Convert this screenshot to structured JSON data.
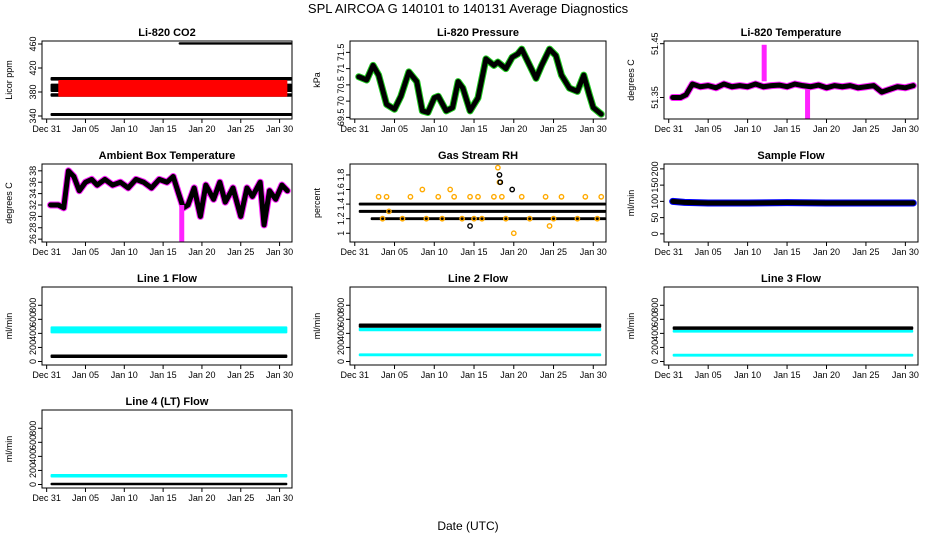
{
  "page": {
    "main_title": "SPL   AIRCOA G   140101 to 140131   Average Diagnostics",
    "xlabel": "Date (UTC)"
  },
  "colors": {
    "black": "#000000",
    "red": "#ff0000",
    "green": "#22cc22",
    "magenta": "#ff22ff",
    "orange": "#ffaa00",
    "blue": "#0000ff",
    "cyan": "#00ffff",
    "white": "#ffffff"
  },
  "x_ticks": [
    "Dec 31",
    "Jan 05",
    "Jan 10",
    "Jan 15",
    "Jan 20",
    "Jan 25",
    "Jan 30"
  ],
  "x_tick_days": [
    0,
    5,
    10,
    15,
    20,
    25,
    30
  ],
  "chart_data": [
    {
      "id": "co2",
      "type": "scatter",
      "title": "Li-820 CO2",
      "ylabel": "Licor ppm",
      "ylim": [
        335,
        465
      ],
      "yticks": [
        340,
        380,
        420,
        460
      ],
      "xlim": [
        -0.6,
        31.6
      ],
      "series": [
        {
          "name": "CO2 band 460",
          "color": "black",
          "shape": "band",
          "x": [
            17,
            31.6
          ],
          "y": [
            459,
            463
          ]
        },
        {
          "name": "CO2 band 402",
          "color": "black",
          "shape": "band",
          "x": [
            0.5,
            31.6
          ],
          "y": [
            399,
            405
          ]
        },
        {
          "name": "CO2 band 385",
          "color": "black",
          "shape": "band",
          "x": [
            0.5,
            31.6
          ],
          "y": [
            380,
            394
          ]
        },
        {
          "name": "CO2 band 375",
          "color": "black",
          "shape": "band",
          "x": [
            0.5,
            31.6
          ],
          "y": [
            372,
            378
          ]
        },
        {
          "name": "CO2 red",
          "color": "red",
          "shape": "band",
          "x": [
            1.5,
            31
          ],
          "y": [
            372,
            400
          ]
        },
        {
          "name": "CO2 band 342",
          "color": "black",
          "shape": "band",
          "x": [
            0.5,
            31.6
          ],
          "y": [
            340,
            345
          ]
        }
      ]
    },
    {
      "id": "pressure",
      "type": "line",
      "title": "Li-820 Pressure",
      "ylabel": "kPa",
      "ylim": [
        69.45,
        71.85
      ],
      "yticks": [
        69.5,
        70.0,
        70.5,
        71.0,
        71.5
      ],
      "xlim": [
        -0.6,
        31.6
      ],
      "series": [
        {
          "name": "Pressure",
          "color": "black",
          "halo": "green",
          "x": [
            0.5,
            1.5,
            2.3,
            3,
            4,
            5,
            5.8,
            6.8,
            7.8,
            8.5,
            9.2,
            10,
            10.5,
            11.5,
            12.3,
            13,
            13.6,
            14.5,
            15.5,
            16.5,
            17.5,
            18,
            19,
            19.8,
            20.5,
            21,
            21.8,
            22.8,
            23.5,
            24.5,
            25.3,
            26,
            27,
            28,
            28.8,
            29.5,
            30,
            31
          ],
          "y": [
            70.75,
            70.65,
            71.1,
            70.8,
            69.9,
            69.75,
            70.15,
            70.9,
            70.6,
            69.7,
            69.65,
            70.1,
            70.15,
            69.7,
            69.8,
            70.6,
            70.4,
            69.7,
            70.1,
            71.3,
            71.1,
            71.2,
            71.0,
            71.35,
            71.45,
            71.6,
            71.2,
            70.7,
            71.1,
            71.6,
            71.4,
            70.8,
            70.4,
            70.3,
            70.8,
            70.2,
            69.8,
            69.6
          ]
        }
      ]
    },
    {
      "id": "licor_temp",
      "type": "line",
      "title": "Li-820 Temperature",
      "ylabel": "degrees C",
      "ylim": [
        51.31,
        51.455
      ],
      "yticks": [
        51.35,
        51.45
      ],
      "xlim": [
        -0.6,
        31.6
      ],
      "series": [
        {
          "name": "Licor temp",
          "color": "black",
          "halo": "magenta",
          "x": [
            0.5,
            1.5,
            2.2,
            3,
            4,
            5,
            6,
            7,
            8,
            9,
            10,
            11,
            12,
            13,
            14,
            15,
            16,
            17,
            18,
            19,
            20,
            21,
            22,
            23,
            24,
            25,
            26,
            27,
            28,
            29,
            30,
            31
          ],
          "y": [
            51.35,
            51.35,
            51.355,
            51.375,
            51.37,
            51.372,
            51.368,
            51.375,
            51.37,
            51.372,
            51.37,
            51.375,
            51.37,
            51.372,
            51.373,
            51.37,
            51.375,
            51.372,
            51.37,
            51.373,
            51.368,
            51.372,
            51.37,
            51.372,
            51.368,
            51.37,
            51.372,
            51.36,
            51.365,
            51.37,
            51.368,
            51.372
          ]
        },
        {
          "name": "Temp spike up",
          "color": "magenta",
          "shape": "spike",
          "x": [
            12.1,
            12.1
          ],
          "y": [
            51.38,
            51.448
          ]
        },
        {
          "name": "Temp spike down",
          "color": "magenta",
          "shape": "spike",
          "x": [
            17.6,
            17.6
          ],
          "y": [
            51.31,
            51.365
          ]
        }
      ]
    },
    {
      "id": "ambient",
      "type": "line",
      "title": "Ambient Box Temperature",
      "ylabel": "degrees C",
      "ylim": [
        25.5,
        39.2
      ],
      "yticks": [
        26,
        28,
        30,
        32,
        34,
        36,
        38
      ],
      "xlim": [
        -0.6,
        31.6
      ],
      "series": [
        {
          "name": "Ambient",
          "color": "black",
          "halo": "magenta",
          "x": [
            0.5,
            1.5,
            2.2,
            2.8,
            3.5,
            4.2,
            5,
            5.8,
            6.5,
            7.5,
            8.5,
            9.5,
            10.5,
            11.5,
            12.5,
            13.5,
            14.5,
            15.5,
            16.3,
            17,
            17.6,
            18.2,
            19,
            19.8,
            20.5,
            21.5,
            22.3,
            23,
            24,
            25,
            25.8,
            26.5,
            27.5,
            28,
            28.7,
            29.5,
            30.3,
            31
          ],
          "y": [
            32.0,
            32.0,
            31.5,
            38.0,
            37.0,
            34.5,
            36.0,
            36.5,
            35.5,
            36.5,
            35.5,
            36.0,
            35.0,
            36.5,
            36.0,
            35.0,
            36.5,
            36.0,
            37.0,
            34.0,
            31.5,
            32.0,
            35.0,
            30.0,
            35.5,
            33.0,
            36.0,
            32.5,
            35.0,
            30.0,
            35.0,
            33.5,
            36.0,
            28.5,
            34.5,
            33.0,
            35.5,
            34.5
          ]
        },
        {
          "name": "Ambient spike",
          "color": "magenta",
          "shape": "spike",
          "x": [
            17.4,
            17.4
          ],
          "y": [
            25.5,
            32
          ]
        }
      ]
    },
    {
      "id": "rh",
      "type": "scatter",
      "title": "Gas Stream RH",
      "ylabel": "percent",
      "ylim": [
        0.88,
        1.95
      ],
      "yticks": [
        1.0,
        1.2,
        1.4,
        1.6,
        1.8
      ],
      "xlim": [
        -0.6,
        31.6
      ],
      "series": [
        {
          "name": "RH 1.4",
          "color": "black",
          "shape": "band",
          "x": [
            0.5,
            31.6
          ],
          "y": [
            1.38,
            1.42
          ]
        },
        {
          "name": "RH 1.3",
          "color": "black",
          "shape": "band",
          "x": [
            0.5,
            31.6
          ],
          "y": [
            1.28,
            1.32
          ]
        },
        {
          "name": "RH 1.2",
          "color": "black",
          "shape": "band",
          "x": [
            2,
            31.6
          ],
          "y": [
            1.18,
            1.22
          ]
        },
        {
          "name": "RH orange",
          "color": "orange",
          "shape": "points",
          "x": [
            3,
            3.5,
            4,
            4.3,
            6,
            7,
            8.5,
            9,
            10.5,
            11,
            12,
            12.5,
            13.5,
            14.5,
            15,
            15.5,
            16,
            17.5,
            18,
            18.2,
            18.5,
            19,
            20,
            21,
            22,
            24,
            24.5,
            25,
            26,
            28,
            29,
            30.5,
            31
          ],
          "y": [
            1.5,
            1.2,
            1.5,
            1.3,
            1.2,
            1.5,
            1.6,
            1.2,
            1.5,
            1.2,
            1.6,
            1.5,
            1.2,
            1.5,
            1.2,
            1.5,
            1.2,
            1.5,
            1.9,
            1.7,
            1.5,
            1.2,
            1.0,
            1.5,
            1.2,
            1.5,
            1.1,
            1.2,
            1.5,
            1.2,
            1.5,
            1.2,
            1.5
          ]
        },
        {
          "name": "RH black outliers",
          "color": "black",
          "shape": "points",
          "x": [
            14.5,
            18.3,
            18.2,
            19.8
          ],
          "y": [
            1.1,
            1.7,
            1.8,
            1.6
          ]
        }
      ]
    },
    {
      "id": "sample",
      "type": "line",
      "title": "Sample Flow",
      "ylabel": "ml/min",
      "ylim": [
        -25,
        215
      ],
      "yticks": [
        0,
        50,
        100,
        150,
        200
      ],
      "xlim": [
        -0.6,
        31.6
      ],
      "series": [
        {
          "name": "Sample flow",
          "color": "black",
          "halo": "blue",
          "x": [
            0.5,
            2,
            5,
            10,
            15,
            20,
            25,
            31
          ],
          "y": [
            100,
            97,
            95,
            95,
            96,
            95,
            95,
            95
          ]
        }
      ]
    },
    {
      "id": "line1",
      "type": "scatter",
      "title": "Line 1 Flow",
      "ylabel": "ml/min",
      "ylim": [
        -50,
        1060
      ],
      "yticks": [
        0,
        200,
        400,
        600,
        800
      ],
      "xlim": [
        -0.6,
        31.6
      ],
      "series": [
        {
          "name": "Line 1 cyan",
          "color": "cyan",
          "shape": "band",
          "x": [
            0.5,
            31
          ],
          "y": [
            400,
            500
          ]
        },
        {
          "name": "Line 1 black",
          "color": "black",
          "shape": "band",
          "x": [
            0.5,
            31
          ],
          "y": [
            50,
            100
          ]
        }
      ]
    },
    {
      "id": "line2",
      "type": "scatter",
      "title": "Line 2 Flow",
      "ylabel": "ml/min",
      "ylim": [
        -50,
        1060
      ],
      "yticks": [
        0,
        200,
        400,
        600,
        800
      ],
      "xlim": [
        -0.6,
        31.6
      ],
      "series": [
        {
          "name": "Line 2 cyan",
          "color": "cyan",
          "shape": "band",
          "x": [
            0.5,
            31
          ],
          "y": [
            430,
            480
          ]
        },
        {
          "name": "Line 2 black",
          "color": "black",
          "shape": "band",
          "x": [
            0.5,
            31
          ],
          "y": [
            480,
            540
          ]
        },
        {
          "name": "Line 2 cyan low",
          "color": "cyan",
          "shape": "band",
          "x": [
            0.5,
            31
          ],
          "y": [
            75,
            115
          ]
        }
      ]
    },
    {
      "id": "line3",
      "type": "scatter",
      "title": "Line 3 Flow",
      "ylabel": "ml/min",
      "ylim": [
        -50,
        1060
      ],
      "yticks": [
        0,
        200,
        400,
        600,
        800
      ],
      "xlim": [
        -0.6,
        31.6
      ],
      "series": [
        {
          "name": "Line 3 cyan",
          "color": "cyan",
          "shape": "band",
          "x": [
            0.5,
            31
          ],
          "y": [
            410,
            450
          ]
        },
        {
          "name": "Line 3 black",
          "color": "black",
          "shape": "band",
          "x": [
            0.5,
            31
          ],
          "y": [
            450,
            500
          ]
        },
        {
          "name": "Line 3 cyan low",
          "color": "cyan",
          "shape": "band",
          "x": [
            0.5,
            31
          ],
          "y": [
            70,
            110
          ]
        }
      ]
    },
    {
      "id": "line4",
      "type": "scatter",
      "title": "Line 4 (LT) Flow",
      "ylabel": "ml/min",
      "ylim": [
        -50,
        1060
      ],
      "yticks": [
        0,
        200,
        400,
        600,
        800
      ],
      "xlim": [
        -0.6,
        31.6
      ],
      "series": [
        {
          "name": "Line 4 cyan",
          "color": "cyan",
          "shape": "band",
          "x": [
            0.5,
            31
          ],
          "y": [
            100,
            150
          ]
        },
        {
          "name": "Line 4 black",
          "color": "black",
          "shape": "band",
          "x": [
            0.5,
            31
          ],
          "y": [
            -10,
            25
          ]
        }
      ]
    }
  ]
}
